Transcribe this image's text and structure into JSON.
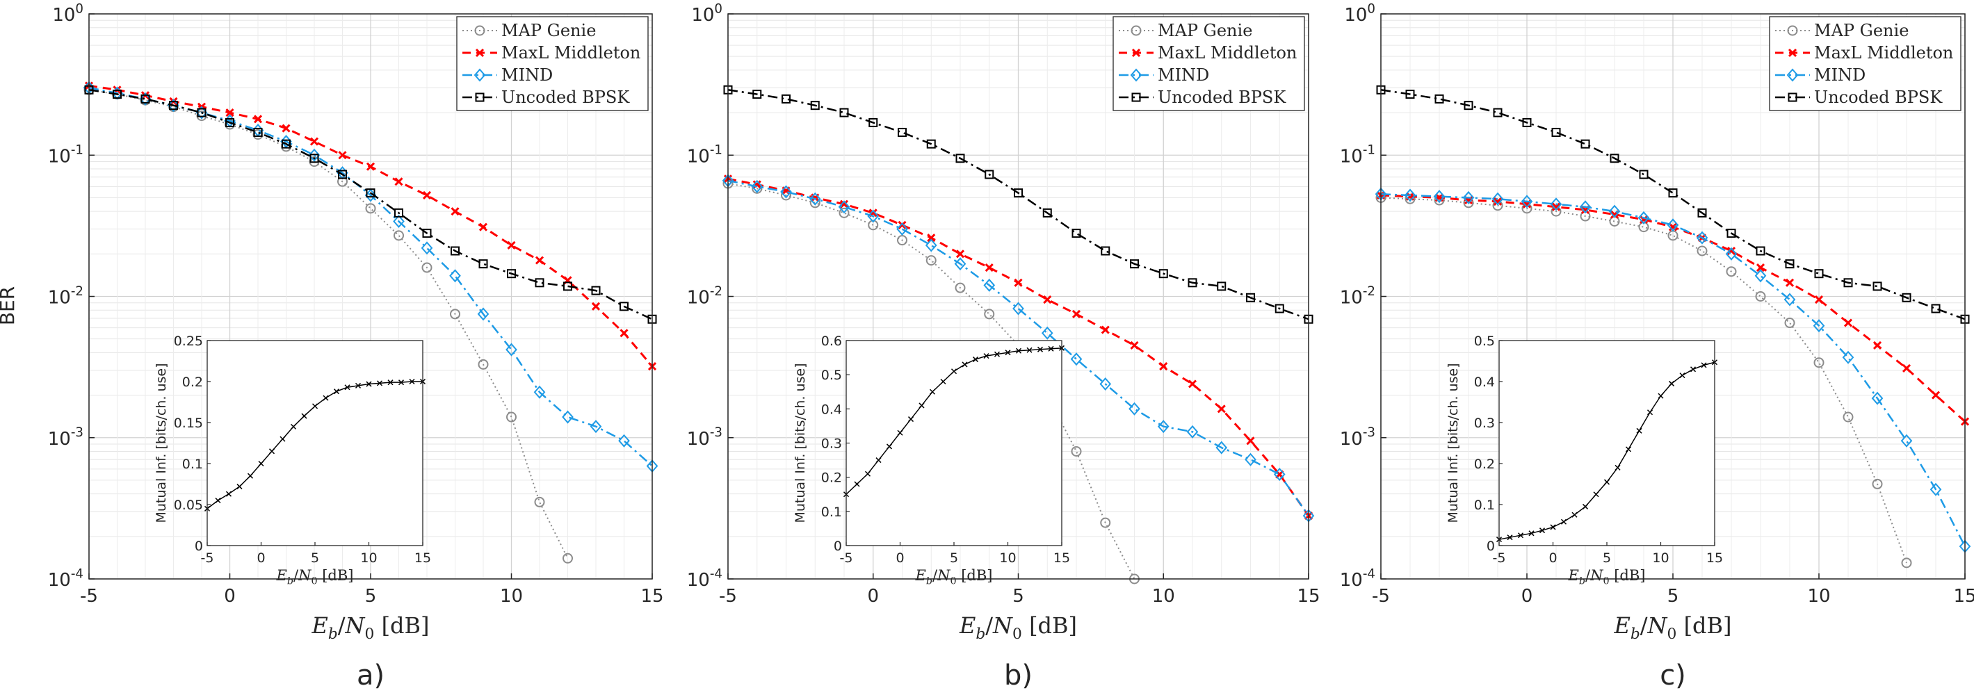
{
  "figure": {
    "shared_ylabel": "BER",
    "shared_xlabel": "E_b/N_0 [dB]",
    "panel_labels": [
      "a)",
      "b)",
      "c)"
    ]
  },
  "colors": {
    "map_genie": "#8c8c8c",
    "maxl_middleton": "#ff0000",
    "mind": "#1e9be6",
    "uncoded_bpsk": "#000000",
    "inset_line": "#000000"
  },
  "chart_data": [
    {
      "panel": "a)",
      "type": "line",
      "yscale": "log",
      "xlim": [
        -5,
        15
      ],
      "ylim": [
        0.0001,
        1
      ],
      "xticks": [
        -5,
        0,
        5,
        10,
        15
      ],
      "ytick_labels": [
        "10^0",
        "10^-1",
        "10^-2",
        "10^-3",
        "10^-4"
      ],
      "xlabel": "E_b/N_0 [dB]",
      "ylabel": "BER",
      "grid": true,
      "legend": "top-right",
      "x": [
        -5,
        -4,
        -3,
        -2,
        -1,
        0,
        1,
        2,
        3,
        4,
        5,
        6,
        7,
        8,
        9,
        10,
        11,
        12,
        13,
        14,
        15
      ],
      "series": [
        {
          "name": "MAP Genie",
          "marker": "circle",
          "style": "dotted",
          "values": [
            0.29,
            0.27,
            0.245,
            0.22,
            0.19,
            0.165,
            0.14,
            0.115,
            0.09,
            0.065,
            0.042,
            0.027,
            0.016,
            0.0075,
            0.0033,
            0.0014,
            0.00035,
            0.00014,
            null,
            null,
            null
          ]
        },
        {
          "name": "MaxL Middleton",
          "marker": "x",
          "style": "dashed",
          "values": [
            0.31,
            0.29,
            0.265,
            0.24,
            0.22,
            0.2,
            0.18,
            0.155,
            0.125,
            0.1,
            0.083,
            0.065,
            0.052,
            0.04,
            0.031,
            0.023,
            0.018,
            0.013,
            0.0085,
            0.0055,
            0.0032
          ]
        },
        {
          "name": "MIND",
          "marker": "diamond",
          "style": "dashdot",
          "values": [
            0.3,
            0.275,
            0.25,
            0.225,
            0.2,
            0.175,
            0.15,
            0.125,
            0.1,
            0.075,
            0.052,
            0.034,
            0.022,
            0.014,
            0.0075,
            0.0042,
            0.0021,
            0.0014,
            0.0012,
            0.00095,
            0.00063
          ]
        },
        {
          "name": "Uncoded BPSK",
          "marker": "square",
          "style": "dashdot",
          "values": [
            0.29,
            0.27,
            0.25,
            0.225,
            0.2,
            0.17,
            0.145,
            0.12,
            0.095,
            0.073,
            0.054,
            0.039,
            0.028,
            0.021,
            0.017,
            0.0145,
            0.0125,
            0.0118,
            0.011,
            0.0085,
            0.0069
          ]
        }
      ],
      "inset": {
        "type": "line",
        "xlabel": "E_b/N_0 [dB]",
        "ylabel": "Mutual Inf. [bits/ch. use]",
        "xlim": [
          -5,
          15
        ],
        "ylim": [
          0,
          0.25
        ],
        "xticks": [
          -5,
          0,
          5,
          10,
          15
        ],
        "yticks": [
          0,
          0.05,
          0.1,
          0.15,
          0.2,
          0.25
        ],
        "ytick_labels": [
          "0",
          "0.05",
          "0.1",
          "0.15",
          "0.2",
          "0.25"
        ],
        "x": [
          -5,
          -4,
          -3,
          -2,
          -1,
          0,
          1,
          2,
          3,
          4,
          5,
          6,
          7,
          8,
          9,
          10,
          11,
          12,
          13,
          14,
          15
        ],
        "values": [
          0.045,
          0.055,
          0.063,
          0.072,
          0.085,
          0.1,
          0.115,
          0.13,
          0.145,
          0.158,
          0.17,
          0.18,
          0.188,
          0.193,
          0.195,
          0.197,
          0.198,
          0.199,
          0.199,
          0.2,
          0.2
        ]
      }
    },
    {
      "panel": "b)",
      "type": "line",
      "yscale": "log",
      "xlim": [
        -5,
        15
      ],
      "ylim": [
        0.0001,
        1
      ],
      "xticks": [
        -5,
        0,
        5,
        10,
        15
      ],
      "ytick_labels": [
        "10^0",
        "10^-1",
        "10^-2",
        "10^-3",
        "10^-4"
      ],
      "xlabel": "E_b/N_0 [dB]",
      "grid": true,
      "legend": "top-right",
      "x": [
        -5,
        -4,
        -3,
        -2,
        -1,
        0,
        1,
        2,
        3,
        4,
        5,
        6,
        7,
        8,
        9,
        10,
        11,
        12,
        13,
        14,
        15
      ],
      "series": [
        {
          "name": "MAP Genie",
          "marker": "circle",
          "style": "dotted",
          "values": [
            0.063,
            0.058,
            0.052,
            0.046,
            0.039,
            0.032,
            0.025,
            0.018,
            0.0115,
            0.0075,
            0.0045,
            0.002,
            0.0008,
            0.00025,
            0.0001,
            null,
            null,
            null,
            null,
            null,
            null
          ]
        },
        {
          "name": "MaxL Middleton",
          "marker": "x",
          "style": "dashed",
          "values": [
            0.068,
            0.062,
            0.056,
            0.05,
            0.045,
            0.039,
            0.032,
            0.026,
            0.02,
            0.016,
            0.0125,
            0.0095,
            0.0075,
            0.0058,
            0.0045,
            0.0032,
            0.0024,
            0.0016,
            0.00095,
            0.00055,
            0.00028
          ]
        },
        {
          "name": "MIND",
          "marker": "diamond",
          "style": "dashdot",
          "values": [
            0.066,
            0.06,
            0.055,
            0.049,
            0.043,
            0.037,
            0.03,
            0.023,
            0.017,
            0.012,
            0.0082,
            0.0055,
            0.0036,
            0.0024,
            0.0016,
            0.0012,
            0.0011,
            0.00085,
            0.0007,
            0.00055,
            0.00028
          ]
        },
        {
          "name": "Uncoded BPSK",
          "marker": "square",
          "style": "dashdot",
          "values": [
            0.29,
            0.27,
            0.25,
            0.225,
            0.2,
            0.17,
            0.145,
            0.12,
            0.095,
            0.073,
            0.054,
            0.039,
            0.028,
            0.021,
            0.017,
            0.0145,
            0.0125,
            0.0118,
            0.0098,
            0.0082,
            0.0069
          ]
        }
      ],
      "inset": {
        "type": "line",
        "xlabel": "E_b/N_0 [dB]",
        "ylabel": "Mutual Inf. [bits/ch. use]",
        "xlim": [
          -5,
          15
        ],
        "ylim": [
          0,
          0.6
        ],
        "xticks": [
          -5,
          0,
          5,
          10,
          15
        ],
        "yticks": [
          0,
          0.1,
          0.2,
          0.3,
          0.4,
          0.5,
          0.6
        ],
        "ytick_labels": [
          "0",
          "0.1",
          "0.2",
          "0.3",
          "0.4",
          "0.5",
          "0.6"
        ],
        "x": [
          -5,
          -4,
          -3,
          -2,
          -1,
          0,
          1,
          2,
          3,
          4,
          5,
          6,
          7,
          8,
          9,
          10,
          11,
          12,
          13,
          14,
          15
        ],
        "values": [
          0.15,
          0.18,
          0.21,
          0.25,
          0.29,
          0.33,
          0.37,
          0.41,
          0.45,
          0.48,
          0.51,
          0.53,
          0.545,
          0.555,
          0.56,
          0.565,
          0.57,
          0.572,
          0.574,
          0.576,
          0.578
        ]
      }
    },
    {
      "panel": "c)",
      "type": "line",
      "yscale": "log",
      "xlim": [
        -5,
        15
      ],
      "ylim": [
        0.0001,
        1
      ],
      "xticks": [
        -5,
        0,
        5,
        10,
        15
      ],
      "ytick_labels": [
        "10^0",
        "10^-1",
        "10^-2",
        "10^-3",
        "10^-4"
      ],
      "xlabel": "E_b/N_0 [dB]",
      "grid": true,
      "legend": "top-right",
      "x": [
        -5,
        -4,
        -3,
        -2,
        -1,
        0,
        1,
        2,
        3,
        4,
        5,
        6,
        7,
        8,
        9,
        10,
        11,
        12,
        13,
        14,
        15
      ],
      "series": [
        {
          "name": "MAP Genie",
          "marker": "circle",
          "style": "dotted",
          "values": [
            0.05,
            0.049,
            0.048,
            0.046,
            0.044,
            0.042,
            0.04,
            0.037,
            0.034,
            0.031,
            0.027,
            0.021,
            0.015,
            0.01,
            0.0065,
            0.0034,
            0.0014,
            0.00047,
            0.00013,
            null,
            null
          ]
        },
        {
          "name": "MaxL Middleton",
          "marker": "x",
          "style": "dashed",
          "values": [
            0.052,
            0.051,
            0.05,
            0.048,
            0.047,
            0.045,
            0.043,
            0.041,
            0.038,
            0.035,
            0.031,
            0.026,
            0.021,
            0.016,
            0.0125,
            0.0095,
            0.0065,
            0.0045,
            0.0031,
            0.002,
            0.0013
          ]
        },
        {
          "name": "MIND",
          "marker": "diamond",
          "style": "dashdot",
          "values": [
            0.053,
            0.052,
            0.051,
            0.05,
            0.049,
            0.047,
            0.045,
            0.043,
            0.04,
            0.036,
            0.032,
            0.026,
            0.02,
            0.014,
            0.0095,
            0.0062,
            0.0037,
            0.0019,
            0.00095,
            0.00043,
            0.00017
          ]
        },
        {
          "name": "Uncoded BPSK",
          "marker": "square",
          "style": "dashdot",
          "values": [
            0.29,
            0.27,
            0.25,
            0.225,
            0.2,
            0.17,
            0.145,
            0.12,
            0.095,
            0.073,
            0.054,
            0.039,
            0.028,
            0.021,
            0.017,
            0.0145,
            0.0125,
            0.0118,
            0.0098,
            0.0082,
            0.0069
          ]
        }
      ],
      "inset": {
        "type": "line",
        "xlabel": "E_b/N_0 [dB]",
        "ylabel": "Mutual Inf. [bits/ch. use]",
        "xlim": [
          -5,
          15
        ],
        "ylim": [
          0,
          0.5
        ],
        "xticks": [
          -5,
          0,
          5,
          10,
          15
        ],
        "yticks": [
          0,
          0.1,
          0.2,
          0.3,
          0.4,
          0.5
        ],
        "ytick_labels": [
          "0",
          "0.1",
          "0.2",
          "0.3",
          "0.4",
          "0.5"
        ],
        "x": [
          -5,
          -4,
          -3,
          -2,
          -1,
          0,
          1,
          2,
          3,
          4,
          5,
          6,
          7,
          8,
          9,
          10,
          11,
          12,
          13,
          14,
          15
        ],
        "values": [
          0.015,
          0.02,
          0.025,
          0.03,
          0.037,
          0.045,
          0.058,
          0.075,
          0.095,
          0.125,
          0.155,
          0.19,
          0.235,
          0.28,
          0.325,
          0.365,
          0.395,
          0.415,
          0.43,
          0.44,
          0.447
        ]
      }
    }
  ]
}
